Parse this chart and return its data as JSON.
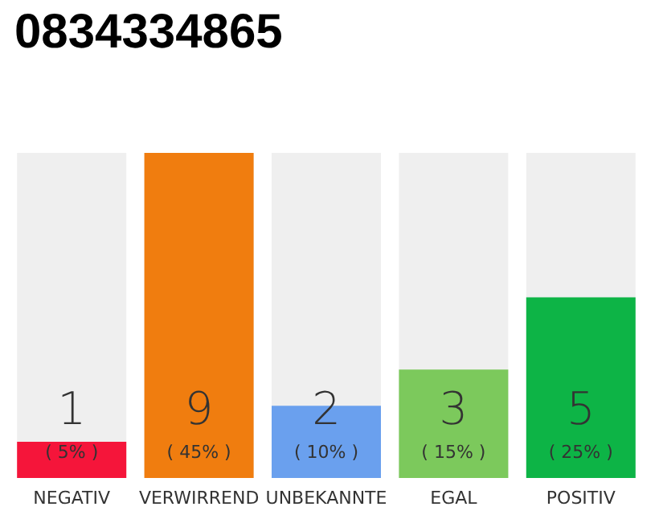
{
  "chart_data": {
    "type": "bar",
    "title": "0834334865",
    "categories": [
      "NEGATIV",
      "VERWIRREND",
      "UNBEKANNTE",
      "EGAL",
      "POSITIV"
    ],
    "values": [
      5,
      45,
      10,
      15,
      25
    ],
    "colors": [
      "#f5153a",
      "#f07d0f",
      "#6aa0ee",
      "#7cc95c",
      "#0db446"
    ],
    "value_labels": [
      "( 5% )",
      "( 45% )",
      "( 10% )",
      "( 15% )",
      "( 25% )"
    ],
    "annotations": [
      "1",
      "9",
      "2",
      "3",
      "5"
    ]
  }
}
